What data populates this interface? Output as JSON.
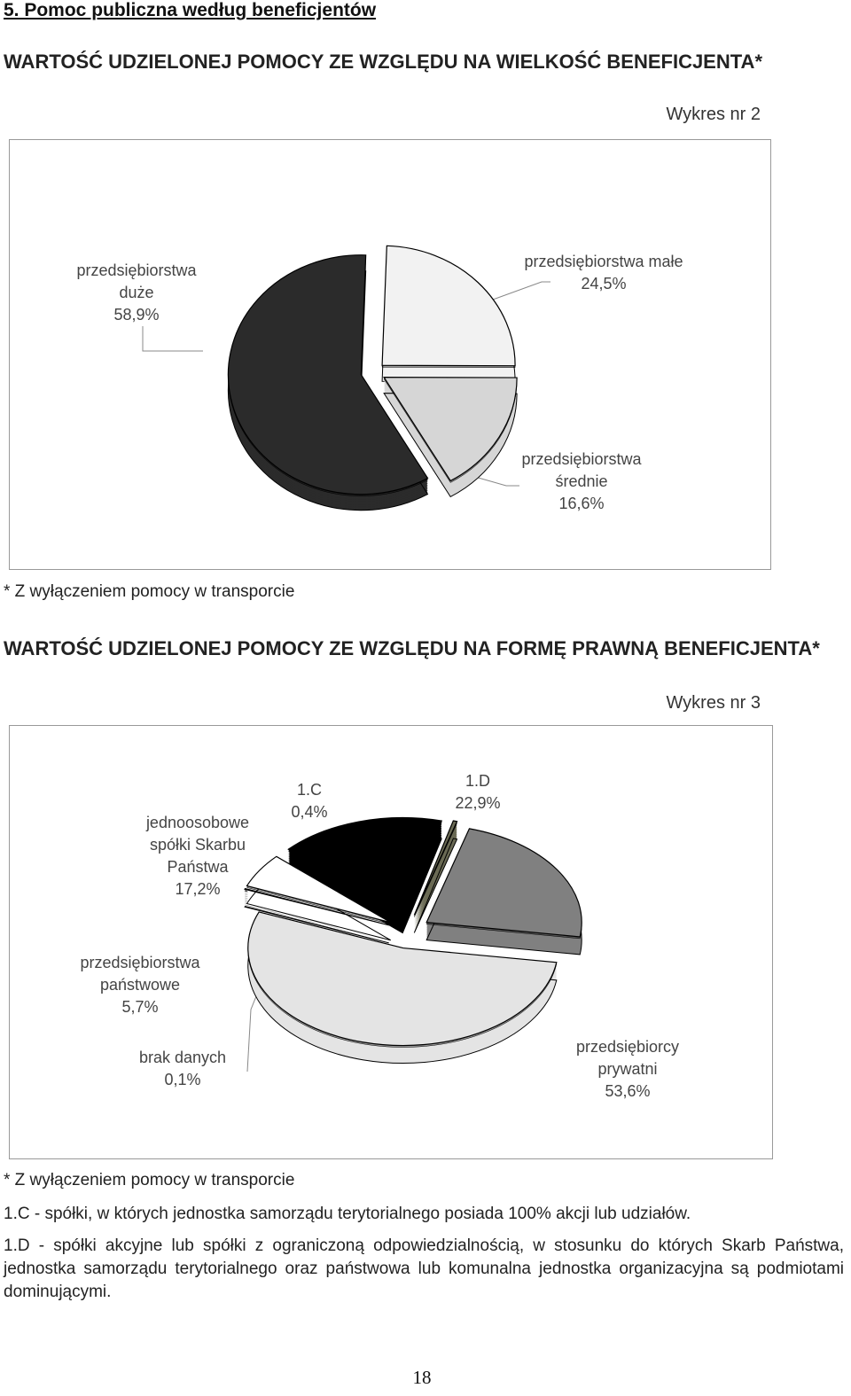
{
  "section_heading": "5. Pomoc publiczna według beneficjentów",
  "chart_data": [
    {
      "type": "pie",
      "title": "WARTOŚĆ UDZIELONEJ POMOCY ZE WZGLĘDU NA WIELKOŚĆ BENEFICJENTA*",
      "subtitle": "Wykres nr 2",
      "categories": [
        "przedsiębiorstwa małe",
        "przedsiębiorstwa średnie",
        "przedsiębiorstwa duże"
      ],
      "values": [
        24.5,
        16.6,
        58.9
      ],
      "value_labels": [
        "24,5%",
        "16,6%",
        "58,9%"
      ],
      "colors": [
        "#f2f2f2",
        "#d6d6d6",
        "#2b2b2b"
      ],
      "note": "* Z wyłączeniem pomocy w transporcie"
    },
    {
      "type": "pie",
      "title": "WARTOŚĆ UDZIELONEJ POMOCY ZE WZGLĘDU NA FORMĘ PRAWNĄ BENEFICJENTA*",
      "subtitle": "Wykres nr 3",
      "categories": [
        "1.D",
        "przedsiębiorcy prywatni",
        "brak danych",
        "przedsiębiorstwa państwowe",
        "jednoosobowe spółki Skarbu Państwa",
        "1.C"
      ],
      "values": [
        22.9,
        53.6,
        0.1,
        5.7,
        17.2,
        0.4
      ],
      "value_labels": [
        "22,9%",
        "53,6%",
        "0,1%",
        "5,7%",
        "17,2%",
        "0,4%"
      ],
      "colors": [
        "#808080",
        "#e4e4e4",
        "#9a9a9a",
        "#ffffff",
        "#000000",
        "#6b6b55"
      ],
      "note": "* Z wyłączeniem pomocy w transporcie"
    }
  ],
  "notes": [
    "1.C - spółki, w których jednostka samorządu terytorialnego posiada 100% akcji lub udziałów.",
    "1.D - spółki akcyjne lub spółki z ograniczoną odpowiedzialnością, w stosunku do których Skarb Państwa, jednostka samorządu terytorialnego oraz państwowa lub komunalna jednostka organizacyjna są podmiotami dominującymi."
  ],
  "page_number": "18"
}
